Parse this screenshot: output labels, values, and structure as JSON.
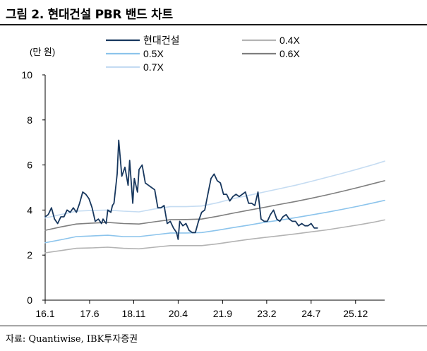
{
  "figure": {
    "title": "그림 2. 현대건설 PBR 밴드 차트",
    "source": "자료: Quantiwise, IBK투자증권"
  },
  "chart_data": {
    "type": "line",
    "title": "그림 2. 현대건설 PBR 밴드 차트",
    "ylabel": "(만 원)",
    "xlabel": "",
    "ylim": [
      0,
      10
    ],
    "xlim": [
      2016.0,
      2026.85
    ],
    "yticks": [
      0,
      2,
      4,
      6,
      8,
      10
    ],
    "xtick_labels": [
      "16.1",
      "17.6",
      "18.11",
      "20.4",
      "21.9",
      "23.2",
      "24.7",
      "25.12"
    ],
    "xtick_values": [
      2016.0,
      2017.42,
      2018.83,
      2020.25,
      2021.67,
      2023.08,
      2024.5,
      2025.92
    ],
    "legend_position": "top",
    "grid": false,
    "series": [
      {
        "name": "현대건설",
        "color": "#17375e",
        "width": 1.8,
        "x": [
          2016.0,
          2016.1,
          2016.2,
          2016.3,
          2016.4,
          2016.5,
          2016.6,
          2016.7,
          2016.8,
          2016.9,
          2017.0,
          2017.1,
          2017.2,
          2017.3,
          2017.4,
          2017.5,
          2017.6,
          2017.7,
          2017.8,
          2017.85,
          2017.95,
          2018.0,
          2018.1,
          2018.15,
          2018.2,
          2018.3,
          2018.35,
          2018.45,
          2018.55,
          2018.65,
          2018.7,
          2018.8,
          2018.85,
          2018.95,
          2019.0,
          2019.1,
          2019.2,
          2019.3,
          2019.4,
          2019.5,
          2019.6,
          2019.7,
          2019.8,
          2019.9,
          2020.0,
          2020.1,
          2020.2,
          2020.25,
          2020.3,
          2020.4,
          2020.5,
          2020.6,
          2020.7,
          2020.8,
          2020.9,
          2021.0,
          2021.1,
          2021.2,
          2021.3,
          2021.4,
          2021.5,
          2021.6,
          2021.7,
          2021.8,
          2021.9,
          2022.0,
          2022.1,
          2022.2,
          2022.3,
          2022.4,
          2022.5,
          2022.6,
          2022.7,
          2022.8,
          2022.9,
          2023.0,
          2023.1,
          2023.2,
          2023.3,
          2023.4,
          2023.5,
          2023.6,
          2023.7,
          2023.8,
          2023.9,
          2024.0,
          2024.1,
          2024.2,
          2024.3,
          2024.4,
          2024.5,
          2024.6,
          2024.7
        ],
        "values": [
          3.7,
          3.8,
          4.1,
          3.6,
          3.4,
          3.7,
          3.7,
          4.0,
          3.9,
          4.1,
          3.9,
          4.3,
          4.8,
          4.7,
          4.5,
          4.1,
          3.5,
          3.6,
          3.4,
          3.6,
          3.4,
          4.0,
          3.9,
          4.2,
          4.3,
          5.6,
          7.1,
          5.5,
          5.9,
          5.1,
          6.2,
          4.3,
          5.4,
          4.8,
          5.8,
          6.0,
          5.2,
          5.1,
          5.0,
          4.9,
          4.1,
          4.1,
          4.2,
          3.4,
          3.5,
          3.2,
          3.0,
          2.7,
          3.5,
          3.3,
          3.4,
          3.1,
          3.0,
          3.0,
          3.5,
          3.9,
          4.0,
          4.7,
          5.4,
          5.6,
          5.3,
          5.2,
          4.7,
          4.7,
          4.4,
          4.6,
          4.7,
          4.6,
          4.7,
          4.8,
          4.3,
          4.3,
          4.2,
          4.8,
          3.6,
          3.5,
          3.5,
          3.8,
          4.0,
          3.6,
          3.5,
          3.7,
          3.8,
          3.6,
          3.5,
          3.5,
          3.3,
          3.4,
          3.3,
          3.3,
          3.4,
          3.2,
          3.2
        ]
      },
      {
        "name": "0.4X",
        "color": "#b3b3b3",
        "width": 1.6,
        "x": [
          2016.0,
          2016.5,
          2017.0,
          2017.5,
          2018.0,
          2018.5,
          2019.0,
          2019.5,
          2020.0,
          2020.5,
          2021.0,
          2021.5,
          2022.0,
          2022.5,
          2023.0,
          2023.5,
          2024.0,
          2024.5,
          2025.0,
          2025.5,
          2026.0,
          2026.5,
          2026.85
        ],
        "values": [
          2.1,
          2.2,
          2.3,
          2.32,
          2.35,
          2.3,
          2.28,
          2.35,
          2.42,
          2.42,
          2.42,
          2.5,
          2.6,
          2.7,
          2.78,
          2.86,
          2.94,
          3.03,
          3.12,
          3.23,
          3.34,
          3.46,
          3.56
        ]
      },
      {
        "name": "0.5X",
        "color": "#8cc4ec",
        "width": 1.6,
        "x": [
          2016.0,
          2016.5,
          2017.0,
          2017.5,
          2018.0,
          2018.5,
          2019.0,
          2019.5,
          2020.0,
          2020.5,
          2021.0,
          2021.5,
          2022.0,
          2022.5,
          2023.0,
          2023.5,
          2024.0,
          2024.5,
          2025.0,
          2025.5,
          2026.0,
          2026.5,
          2026.85
        ],
        "values": [
          2.55,
          2.68,
          2.82,
          2.85,
          2.88,
          2.82,
          2.82,
          2.9,
          2.98,
          2.98,
          3.0,
          3.1,
          3.22,
          3.33,
          3.45,
          3.55,
          3.66,
          3.78,
          3.9,
          4.03,
          4.17,
          4.32,
          4.43
        ]
      },
      {
        "name": "0.6X",
        "color": "#7f7f7f",
        "width": 1.6,
        "x": [
          2016.0,
          2016.5,
          2017.0,
          2017.5,
          2018.0,
          2018.5,
          2019.0,
          2019.5,
          2020.0,
          2020.5,
          2021.0,
          2021.5,
          2022.0,
          2022.5,
          2023.0,
          2023.5,
          2024.0,
          2024.5,
          2025.0,
          2025.5,
          2026.0,
          2026.5,
          2026.85
        ],
        "values": [
          3.1,
          3.25,
          3.38,
          3.42,
          3.45,
          3.4,
          3.38,
          3.48,
          3.57,
          3.58,
          3.6,
          3.72,
          3.86,
          3.99,
          4.12,
          4.25,
          4.38,
          4.52,
          4.67,
          4.83,
          5.0,
          5.18,
          5.3
        ]
      },
      {
        "name": "0.7X",
        "color": "#c5dcf2",
        "width": 1.6,
        "x": [
          2016.0,
          2016.5,
          2017.0,
          2017.5,
          2018.0,
          2018.5,
          2019.0,
          2019.5,
          2020.0,
          2020.5,
          2021.0,
          2021.5,
          2022.0,
          2022.5,
          2023.0,
          2023.5,
          2024.0,
          2024.5,
          2025.0,
          2025.5,
          2026.0,
          2026.5,
          2026.85
        ],
        "values": [
          3.65,
          3.8,
          3.95,
          3.98,
          4.0,
          3.95,
          3.92,
          4.05,
          4.15,
          4.15,
          4.18,
          4.32,
          4.5,
          4.65,
          4.8,
          4.95,
          5.1,
          5.27,
          5.45,
          5.63,
          5.82,
          6.02,
          6.17
        ]
      }
    ]
  }
}
